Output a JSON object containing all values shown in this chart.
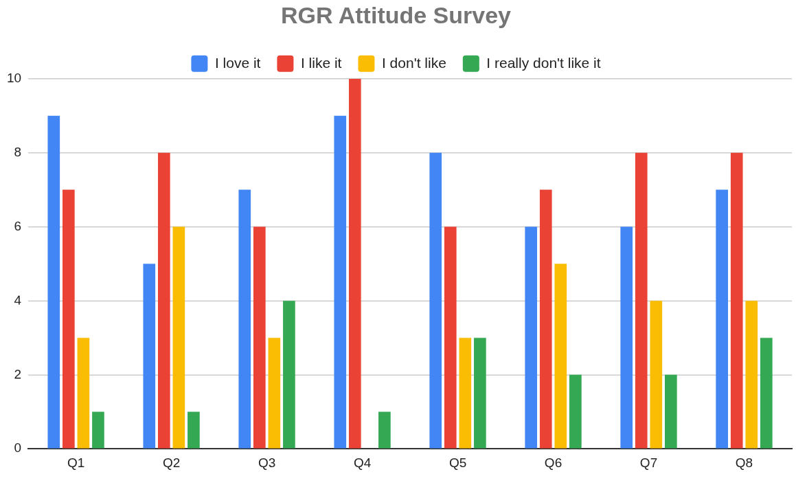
{
  "chart_data": {
    "type": "bar",
    "title": "RGR Attitude Survey",
    "categories": [
      "Q1",
      "Q2",
      "Q3",
      "Q4",
      "Q5",
      "Q6",
      "Q7",
      "Q8"
    ],
    "series": [
      {
        "name": "I love it",
        "color": "#4285f4",
        "values": [
          9,
          5,
          7,
          9,
          8,
          6,
          6,
          7
        ]
      },
      {
        "name": "I like it",
        "color": "#ea4335",
        "values": [
          7,
          8,
          6,
          10,
          6,
          7,
          8,
          8
        ]
      },
      {
        "name": "I don't like",
        "color": "#fbbc04",
        "values": [
          3,
          6,
          3,
          0,
          3,
          5,
          4,
          4
        ]
      },
      {
        "name": "I really don't like it",
        "color": "#34a853",
        "values": [
          1,
          1,
          4,
          1,
          3,
          2,
          2,
          3
        ]
      }
    ],
    "ylim": [
      0,
      10
    ],
    "yticks": [
      0,
      2,
      4,
      6,
      8,
      10
    ],
    "grid": "y",
    "legend": "top"
  }
}
